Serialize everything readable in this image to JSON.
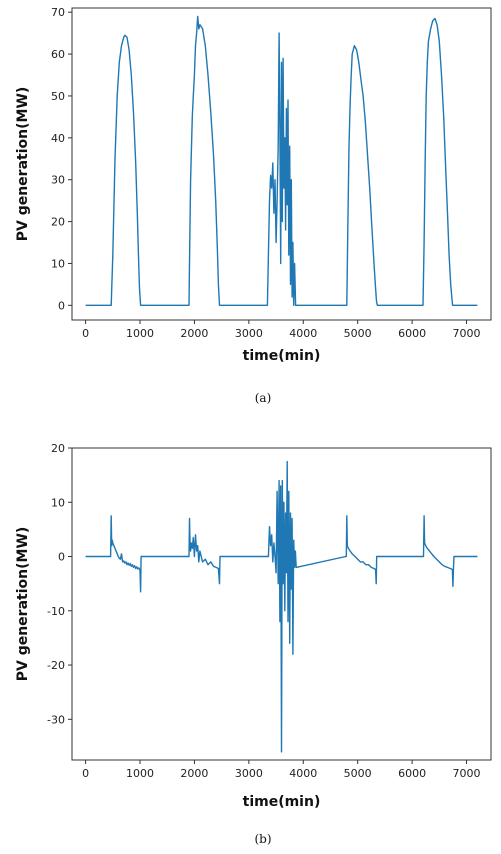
{
  "chart_data": [
    {
      "type": "line",
      "xlabel": "time(min)",
      "ylabel": "PV generation(MW)",
      "caption": "(a)",
      "xlim": [
        -250,
        7450
      ],
      "ylim": [
        -3.5,
        71
      ],
      "xticks": [
        0,
        1000,
        2000,
        3000,
        4000,
        5000,
        6000,
        7000
      ],
      "yticks": [
        0,
        10,
        20,
        30,
        40,
        50,
        60,
        70
      ],
      "grid": false,
      "color": "#1f77b4",
      "series": [
        {
          "x": [
            0,
            470,
            500,
            540,
            580,
            620,
            660,
            700,
            720,
            760,
            800,
            840,
            880,
            920,
            950,
            975,
            990,
            1010,
            1900,
            1910,
            1930,
            1960,
            1980,
            2000,
            2020,
            2040,
            2060,
            2080,
            2100,
            2150,
            2200,
            2250,
            2300,
            2350,
            2390,
            2420,
            2440,
            2460,
            3340,
            3360,
            3380,
            3400,
            3420,
            3440,
            3460,
            3480,
            3500,
            3520,
            3540,
            3555,
            3570,
            3585,
            3600,
            3615,
            3630,
            3645,
            3660,
            3675,
            3690,
            3705,
            3720,
            3735,
            3750,
            3765,
            3780,
            3795,
            3810,
            3825,
            3840,
            3860,
            4800,
            4820,
            4840,
            4860,
            4880,
            4900,
            4940,
            4980,
            5020,
            5060,
            5100,
            5140,
            5180,
            5220,
            5260,
            5300,
            5330,
            5345,
            5360,
            6200,
            6220,
            6240,
            6260,
            6280,
            6300,
            6340,
            6380,
            6420,
            6460,
            6500,
            6540,
            6580,
            6620,
            6650,
            6680,
            6710,
            6730,
            6745,
            6760,
            7200
          ],
          "y": [
            0,
            0,
            12,
            35,
            50,
            58,
            62,
            64,
            64.5,
            64,
            61,
            55,
            46,
            34,
            22,
            10,
            4,
            0,
            0,
            10,
            30,
            45,
            50,
            55,
            62,
            65,
            69,
            66,
            67,
            66,
            62,
            55,
            46,
            36,
            25,
            14,
            5,
            0,
            0,
            12,
            25,
            31,
            28,
            34,
            22,
            30,
            15,
            25,
            38,
            65,
            42,
            10,
            58,
            20,
            59,
            28,
            40,
            18,
            47,
            24,
            49,
            12,
            38,
            5,
            30,
            2,
            15,
            0,
            10,
            0,
            0,
            20,
            38,
            48,
            55,
            60,
            62,
            61,
            58,
            54,
            50,
            44,
            36,
            28,
            19,
            10,
            4,
            1,
            0,
            0,
            15,
            35,
            50,
            58,
            63,
            66,
            68,
            68.5,
            67,
            63,
            55,
            45,
            32,
            22,
            12,
            5,
            2,
            0,
            0,
            0
          ]
        }
      ]
    },
    {
      "type": "line",
      "xlabel": "time(min)",
      "ylabel": "PV generation(MW)",
      "caption": "(b)",
      "xlim": [
        -250,
        7450
      ],
      "ylim": [
        -37.5,
        20
      ],
      "xticks": [
        0,
        1000,
        2000,
        3000,
        4000,
        5000,
        6000,
        7000
      ],
      "yticks": [
        -30,
        -20,
        -10,
        0,
        10,
        20
      ],
      "grid": false,
      "color": "#1f77b4",
      "series": [
        {
          "x": [
            0,
            460,
            470,
            480,
            490,
            500,
            520,
            540,
            560,
            580,
            600,
            620,
            640,
            660,
            680,
            700,
            720,
            740,
            760,
            780,
            800,
            820,
            840,
            860,
            880,
            900,
            920,
            940,
            960,
            980,
            1000,
            1010,
            1020,
            1900,
            1910,
            1920,
            1930,
            1940,
            1960,
            1980,
            2000,
            2020,
            2040,
            2060,
            2080,
            2100,
            2150,
            2200,
            2250,
            2300,
            2350,
            2400,
            2440,
            2460,
            2470,
            2480,
            3360,
            3380,
            3400,
            3420,
            3440,
            3460,
            3480,
            3500,
            3520,
            3540,
            3555,
            3570,
            3585,
            3600,
            3615,
            3630,
            3645,
            3660,
            3675,
            3690,
            3705,
            3720,
            3735,
            3750,
            3765,
            3780,
            3795,
            3810,
            3825,
            3840,
            3855,
            3870,
            4780,
            4790,
            4800,
            4810,
            4830,
            4860,
            4900,
            4950,
            5000,
            5050,
            5100,
            5150,
            5200,
            5250,
            5300,
            5330,
            5340,
            5350,
            5360,
            6200,
            6210,
            6220,
            6230,
            6250,
            6280,
            6320,
            6360,
            6400,
            6450,
            6500,
            6550,
            6600,
            6650,
            6700,
            6740,
            6750,
            6760,
            6770,
            7200
          ],
          "y": [
            0,
            0,
            7.5,
            2,
            3,
            2.5,
            2,
            1.5,
            1,
            0.5,
            0,
            -0.3,
            -0.5,
            0.5,
            -1,
            -0.8,
            -1.2,
            -1,
            -1.5,
            -1.2,
            -1.6,
            -1.3,
            -1.8,
            -1.5,
            -2,
            -1.7,
            -2.2,
            -1.9,
            -2.3,
            -2.1,
            -2.5,
            -6.5,
            0,
            0,
            7,
            2,
            1,
            2.5,
            1.5,
            3.5,
            0,
            4,
            1,
            2,
            -1,
            1,
            -1,
            -0.5,
            -1.5,
            -1,
            -1.8,
            -2,
            -2.2,
            -5,
            0,
            0,
            0,
            5.5,
            2,
            4,
            -1,
            2.5,
            0,
            -3,
            12,
            -5,
            14,
            -12,
            13,
            -36,
            14,
            -5,
            10,
            -10,
            8,
            -3,
            17.5,
            -12,
            12,
            -16,
            8,
            -6,
            7,
            -18,
            3,
            -2,
            1,
            -2,
            0,
            0,
            7.5,
            2,
            1.5,
            1,
            0.5,
            0,
            -0.5,
            -1,
            -1,
            -1.5,
            -1.5,
            -2,
            -2.2,
            -2.4,
            -5,
            0,
            0,
            0,
            0,
            7.5,
            2.5,
            2,
            1.5,
            1,
            0.5,
            0,
            -0.5,
            -1,
            -1.5,
            -1.8,
            -2,
            -2.2,
            -2.4,
            -5.5,
            -2,
            0,
            0
          ]
        }
      ]
    }
  ]
}
